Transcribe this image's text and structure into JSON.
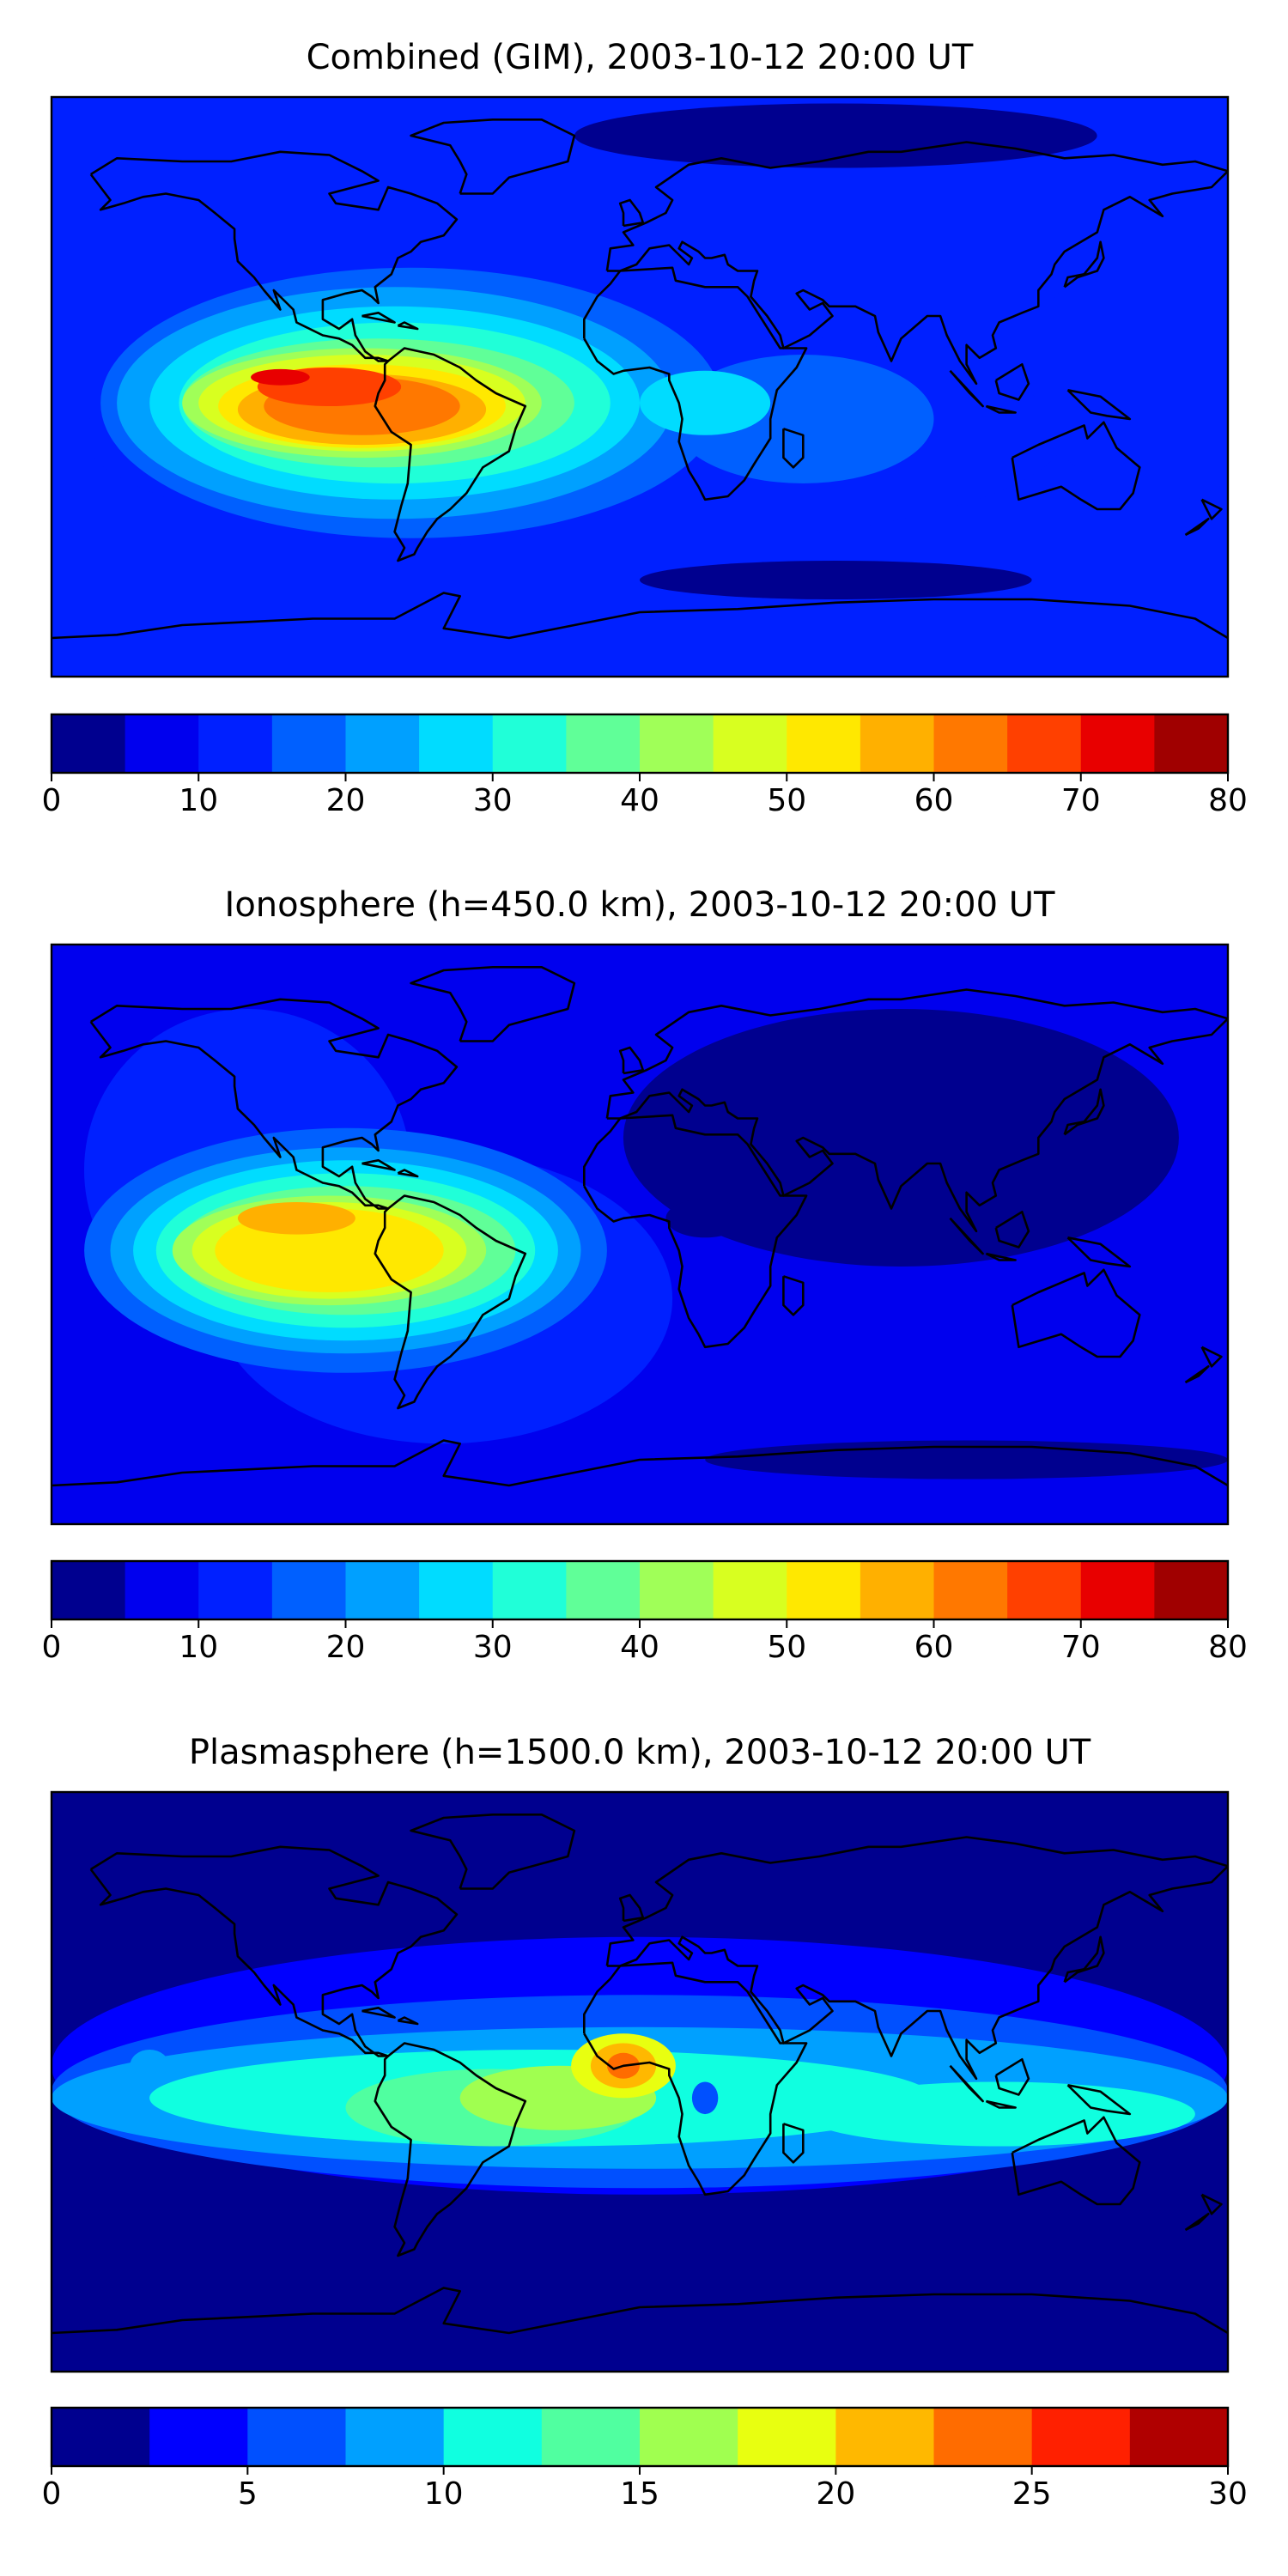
{
  "chart_data": [
    {
      "type": "heatmap",
      "title": "Combined (GIM), 2003-10-12 20:00 UT",
      "colorbar": {
        "levels": [
          0,
          5,
          10,
          15,
          20,
          25,
          30,
          35,
          40,
          45,
          50,
          55,
          60,
          65,
          70,
          75,
          80
        ],
        "tick_labels": [
          "0",
          "10",
          "20",
          "30",
          "40",
          "50",
          "60",
          "70",
          "80"
        ],
        "colors": [
          "#00008f",
          "#0000ee",
          "#0020ff",
          "#0060ff",
          "#00a0ff",
          "#00dcff",
          "#20ffd8",
          "#60ff98",
          "#a0ff58",
          "#d8ff20",
          "#ffe800",
          "#ffb000",
          "#ff7800",
          "#ff4000",
          "#e80000",
          "#a00000"
        ]
      },
      "peak": {
        "value": 72,
        "location": "west of South America, equatorial eastern Pacific"
      },
      "description_of_field": "High values over equatorial South America and eastern Pacific, low values over Eurasia and high latitudes"
    },
    {
      "type": "heatmap",
      "title": "Ionosphere  (h=450.0 km), 2003-10-12 20:00 UT",
      "colorbar": {
        "levels": [
          0,
          5,
          10,
          15,
          20,
          25,
          30,
          35,
          40,
          45,
          50,
          55,
          60,
          65,
          70,
          75,
          80
        ],
        "tick_labels": [
          "0",
          "10",
          "20",
          "30",
          "40",
          "50",
          "60",
          "70",
          "80"
        ],
        "colors": [
          "#00008f",
          "#0000ee",
          "#0020ff",
          "#0060ff",
          "#00a0ff",
          "#00dcff",
          "#20ffd8",
          "#60ff98",
          "#a0ff58",
          "#d8ff20",
          "#ffe800",
          "#ffb000",
          "#ff7800",
          "#ff4000",
          "#e80000",
          "#a00000"
        ]
      },
      "peak": {
        "value": 60,
        "location": "eastern equatorial Pacific / northern South America"
      }
    },
    {
      "type": "heatmap",
      "title": "Plasmasphere (h=1500.0 km), 2003-10-12 20:00 UT",
      "colorbar": {
        "levels": [
          0,
          2.5,
          5,
          7.5,
          10,
          12.5,
          15,
          17.5,
          20,
          22.5,
          25,
          27.5,
          30
        ],
        "tick_labels": [
          "0",
          "5",
          "10",
          "15",
          "20",
          "25",
          "30"
        ],
        "colors": [
          "#00008f",
          "#0000ff",
          "#0050ff",
          "#00a0ff",
          "#10ffe0",
          "#50ffa0",
          "#a0ff50",
          "#e8ff10",
          "#ffb800",
          "#ff6c00",
          "#ff2000",
          "#b00000"
        ]
      },
      "peak": {
        "value": 22,
        "location": "Gulf of Guinea / equatorial Atlantic"
      }
    }
  ]
}
